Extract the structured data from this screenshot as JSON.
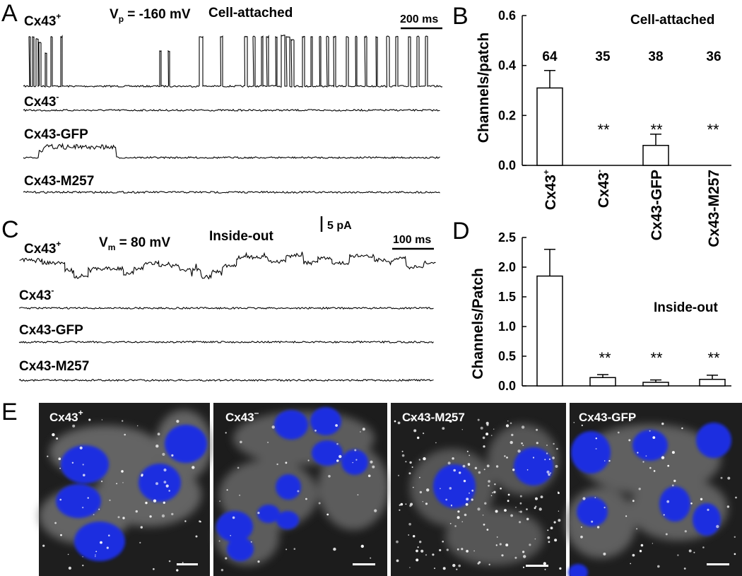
{
  "panels": {
    "a": "A",
    "b": "B",
    "c": "C",
    "d": "D",
    "e": "E"
  },
  "panelA": {
    "condition": "Cell-attached",
    "voltage_prefix": "V",
    "voltage_sub": "p",
    "voltage_suffix": " = -160 mV",
    "scalebar": "200 ms",
    "traces": [
      {
        "base": "Cx43",
        "sup": "+"
      },
      {
        "base": "Cx43",
        "sup": "-"
      },
      {
        "base": "Cx43-GFP",
        "sup": ""
      },
      {
        "base": "Cx43-M257",
        "sup": ""
      }
    ]
  },
  "panelC": {
    "condition": "Inside-out",
    "voltage_prefix": "V",
    "voltage_sub": "m",
    "voltage_suffix": " = 80 mV",
    "scalebar_time": "100 ms",
    "scalebar_current": "5 pA",
    "traces": [
      {
        "base": "Cx43",
        "sup": "+"
      },
      {
        "base": "Cx43",
        "sup": "-"
      },
      {
        "base": "Cx43-GFP",
        "sup": ""
      },
      {
        "base": "Cx43-M257",
        "sup": ""
      }
    ]
  },
  "chart_data": [
    {
      "panel": "B",
      "type": "bar",
      "title": "Cell-attached",
      "ylabel": "Channels/patch",
      "ylim": [
        0,
        0.6
      ],
      "yticks": [
        "0.0",
        "0.2",
        "0.4",
        "0.6"
      ],
      "categories": [
        {
          "base": "Cx43",
          "sup": "+"
        },
        {
          "base": "Cx43",
          "sup": "-"
        },
        {
          "base": "Cx43-GFP",
          "sup": ""
        },
        {
          "base": "Cx43-M257",
          "sup": ""
        }
      ],
      "values": [
        0.31,
        0,
        0.08,
        0
      ],
      "errors": [
        0.07,
        0,
        0.045,
        0
      ],
      "n_labels": [
        "64",
        "35",
        "38",
        "36"
      ],
      "significance": [
        "",
        "**",
        "**",
        "**"
      ]
    },
    {
      "panel": "D",
      "type": "bar",
      "title": "Inside-out",
      "ylabel": "Channels/Patch",
      "ylim": [
        0,
        2.5
      ],
      "yticks": [
        "0.0",
        "0.5",
        "1.0",
        "1.5",
        "2.0",
        "2.5"
      ],
      "values": [
        1.85,
        0.14,
        0.06,
        0.11
      ],
      "errors": [
        0.45,
        0.05,
        0.04,
        0.07
      ],
      "significance": [
        "",
        "**",
        "**",
        "**"
      ]
    }
  ],
  "panelE": {
    "images": [
      {
        "base": "Cx43",
        "sup": "+"
      },
      {
        "base": "Cx43",
        "sup": "–"
      },
      {
        "base": "Cx43-M257",
        "sup": ""
      },
      {
        "base": "Cx43-GFP",
        "sup": ""
      }
    ]
  }
}
